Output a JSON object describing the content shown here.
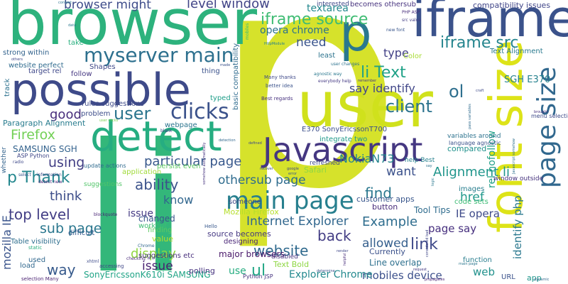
{
  "words": [
    {
      "text": "p",
      "color": "#d6e22b"
    },
    {
      "text": "li",
      "color": "#33b77a"
    },
    {
      "text": "browser",
      "color": "#2db27d"
    },
    {
      "text": "iframe",
      "color": "#3b528b"
    },
    {
      "text": "user",
      "color": "#d0e11c"
    },
    {
      "text": "possible",
      "color": "#3e4a89"
    },
    {
      "text": "detect",
      "color": "#26ad81"
    },
    {
      "text": "font size",
      "color": "#dde318"
    },
    {
      "text": "p",
      "color": "#2a788e"
    },
    {
      "text": "Javascript",
      "color": "#453781"
    },
    {
      "text": "page size",
      "color": "#31688e"
    },
    {
      "text": "main page",
      "color": "#277f8e"
    },
    {
      "text": "myserver main",
      "color": "#2d708e"
    },
    {
      "text": "clicks",
      "color": "#3b528b"
    },
    {
      "text": "iframe source",
      "color": "#3fbc73"
    },
    {
      "text": "iframe src",
      "color": "#25858e"
    },
    {
      "text": "li Text",
      "color": "#1fa187"
    },
    {
      "text": "client",
      "color": "#2c738e"
    },
    {
      "text": "user",
      "color": "#2b758e"
    },
    {
      "text": "browser might",
      "color": "#3e4c8a"
    },
    {
      "text": "level window",
      "color": "#414487"
    },
    {
      "text": "compatibility issues",
      "color": "#404588"
    },
    {
      "text": "opera chrome",
      "color": "#2c728e"
    },
    {
      "text": "textarea",
      "color": "#23888e"
    },
    {
      "text": "becomes othersub",
      "color": "#46327e"
    },
    {
      "text": "need",
      "color": "#3a548c"
    },
    {
      "text": "say identify",
      "color": "#404688"
    },
    {
      "text": "ol",
      "color": "#2e6f8e"
    },
    {
      "text": "type",
      "color": "#424086"
    },
    {
      "text": "good",
      "color": "#472d7b"
    },
    {
      "text": "particular page",
      "color": "#38588c"
    },
    {
      "text": "Firefox",
      "color": "#73d056"
    },
    {
      "text": "using",
      "color": "#423f85"
    },
    {
      "text": "p Thank",
      "color": "#24878e"
    },
    {
      "text": "ability",
      "color": "#3b528b"
    },
    {
      "text": "think",
      "color": "#3d4e8a"
    },
    {
      "text": "top level",
      "color": "#433e85"
    },
    {
      "text": "sub page",
      "color": "#2a778e"
    },
    {
      "text": "display",
      "color": "#90d743"
    },
    {
      "text": "way",
      "color": "#375a8c"
    },
    {
      "text": "othersub page",
      "color": "#2f6c8e"
    },
    {
      "text": "main page",
      "color": "#2a768e"
    },
    {
      "text": "website",
      "color": "#306a8e"
    },
    {
      "text": "issue",
      "color": "#481f70"
    },
    {
      "text": "know",
      "color": "#31668e"
    },
    {
      "text": "Internet Explorer",
      "color": "#31678e"
    },
    {
      "text": "back",
      "color": "#433d84"
    },
    {
      "text": "find",
      "color": "#2a778e"
    },
    {
      "text": "want",
      "color": "#3b518b"
    },
    {
      "text": "Alignment li",
      "color": "#1f958b"
    },
    {
      "text": "Example",
      "color": "#2e6d8e"
    },
    {
      "text": "link",
      "color": "#3e4989"
    },
    {
      "text": "allowed",
      "color": "#355f8d"
    },
    {
      "text": "page say",
      "color": "#462f7e"
    },
    {
      "text": "mobiles device",
      "color": "#3c508b"
    },
    {
      "text": "web",
      "color": "#21918c"
    },
    {
      "text": "NokiaN73",
      "color": "#25858e"
    },
    {
      "text": "href",
      "color": "#1f988b"
    },
    {
      "text": "rel nofollow",
      "color": "#1f9f88"
    },
    {
      "text": "identify php",
      "color": "#2a788e"
    },
    {
      "text": "SGH E370",
      "color": "#26828e"
    },
    {
      "text": "Text Alignment",
      "color": "#29798e"
    },
    {
      "text": "IE opera",
      "color": "#3e4a89"
    },
    {
      "text": "mozilla IE",
      "color": "#3a548c"
    },
    {
      "text": "SAMSUNG SGH",
      "color": "#33628d"
    },
    {
      "text": "SonyEricssonK610i SAMSUNG",
      "color": "#20a486"
    },
    {
      "text": "ul",
      "color": "#22a785"
    },
    {
      "text": "Explorer Chrome",
      "color": "#23898e"
    },
    {
      "text": "use",
      "color": "#27ad81"
    },
    {
      "text": "E370 SonyEricssonT700",
      "color": "#3c4f8a"
    },
    {
      "text": "rules suggestions",
      "color": "#3e4a89"
    },
    {
      "text": "Paragraph Alignment",
      "color": "#287c8e"
    },
    {
      "text": "user clicks",
      "color": "#7ad151"
    },
    {
      "text": "Mozilla Firefox",
      "color": "#b5de2b"
    },
    {
      "text": "Tool Tips",
      "color": "#2f6c8e"
    },
    {
      "text": "source becomes",
      "color": "#453882"
    },
    {
      "text": "major browsers",
      "color": "#481769"
    },
    {
      "text": "Text Bold",
      "color": "#8fd744"
    },
    {
      "text": "Line overlap",
      "color": "#2d708e"
    },
    {
      "text": "Currently",
      "color": "#3b518b"
    },
    {
      "text": "button",
      "color": "#472c7a"
    },
    {
      "text": "customer apps",
      "color": "#39568c"
    },
    {
      "text": "polling",
      "color": "#46337f"
    },
    {
      "text": "designing",
      "color": "#482576"
    },
    {
      "text": "issue",
      "color": "#443a83"
    },
    {
      "text": "changed",
      "color": "#39558c"
    },
    {
      "text": "workout",
      "color": "#3fbc73"
    },
    {
      "text": "Table visibility",
      "color": "#2e6e8e"
    },
    {
      "text": "difficult",
      "color": "#375b8d"
    },
    {
      "text": "suggestions etc",
      "color": "#472e7c"
    },
    {
      "text": "load",
      "color": "#31688e"
    },
    {
      "text": "used",
      "color": "#31688e"
    },
    {
      "text": "strong within",
      "color": "#33638d"
    },
    {
      "text": "website perfect",
      "color": "#2f6b8e"
    },
    {
      "text": "target rel",
      "color": "#3f4889"
    },
    {
      "text": "Shapes",
      "color": "#3f4788"
    },
    {
      "text": "follow",
      "color": "#453781"
    },
    {
      "text": "take",
      "color": "#29af7f"
    },
    {
      "text": "track",
      "color": "#2c718e"
    },
    {
      "text": "problem",
      "color": "#3d4d8a"
    },
    {
      "text": "thing",
      "color": "#3b528b"
    },
    {
      "text": "typed",
      "color": "#1f9e89"
    },
    {
      "text": "webpage",
      "color": "#2b748e"
    },
    {
      "text": "basic compatibility",
      "color": "#2f6b8e"
    },
    {
      "text": "mobiles",
      "color": "#3fbc73"
    },
    {
      "text": "Color",
      "color": "#a8db34"
    },
    {
      "text": "least",
      "color": "#2c738e"
    },
    {
      "text": "interested",
      "color": "#3f4788"
    },
    {
      "text": "say",
      "color": "#2c738e"
    },
    {
      "text": "persist even",
      "color": "#5ec962"
    },
    {
      "text": "application",
      "color": "#a0da39"
    },
    {
      "text": "someone",
      "color": "#3f4788"
    },
    {
      "text": "Safari",
      "color": "#8ed645"
    },
    {
      "text": "code sets",
      "color": "#3dbc74"
    },
    {
      "text": "images",
      "color": "#277e8e"
    },
    {
      "text": "compared",
      "color": "#21918c"
    },
    {
      "text": "integrate two",
      "color": "#1f9a8a"
    },
    {
      "text": "refreshed",
      "color": "#3e4989"
    },
    {
      "text": "considered bad",
      "color": "#3f4788"
    },
    {
      "text": "function",
      "color": "#287d8e"
    },
    {
      "text": "app",
      "color": "#1f968b"
    },
    {
      "text": "URL",
      "color": "#3b528b"
    },
    {
      "text": "window outside",
      "color": "#46327e"
    },
    {
      "text": "Javascript somehow",
      "color": "#2d708e"
    },
    {
      "text": "menu selection",
      "color": "#3e4a89"
    },
    {
      "text": "variables around",
      "color": "#2c728e"
    },
    {
      "text": "language agnostic",
      "color": "#3b528b"
    },
    {
      "text": "help Best",
      "color": "#26818e"
    },
    {
      "text": "suggestions",
      "color": "#52c569"
    },
    {
      "text": "update actions",
      "color": "#2f6b8e"
    },
    {
      "text": "ASP Python",
      "color": "#3f4788"
    },
    {
      "text": "finding",
      "color": "#5ec962"
    },
    {
      "text": "value",
      "color": "#b5de2b"
    },
    {
      "text": "Hello",
      "color": "#38588c"
    },
    {
      "text": "disabled",
      "color": "#46337f"
    },
    {
      "text": "Python JSP",
      "color": "#46337f"
    },
    {
      "text": "accessing",
      "color": "#3f4788"
    },
    {
      "text": "selection Many",
      "color": "#481f70"
    },
    {
      "text": "Chrome",
      "color": "#31688e"
    },
    {
      "text": "checking",
      "color": "#482878"
    },
    {
      "text": "static",
      "color": "#29af7f"
    },
    {
      "text": "xhtml",
      "color": "#3e4c8a"
    },
    {
      "text": "blockquote",
      "color": "#482475"
    },
    {
      "text": "information",
      "color": "#3e4a89"
    },
    {
      "text": "select",
      "color": "#38598c"
    },
    {
      "text": "detect new",
      "color": "#482677"
    },
    {
      "text": "whether",
      "color": "#33638d"
    },
    {
      "text": "radio",
      "color": "#3e4989"
    },
    {
      "text": "blank",
      "color": "#3f4788"
    },
    {
      "text": "Many thanks",
      "color": "#3e4989"
    },
    {
      "text": "better idea",
      "color": "#3b528b"
    },
    {
      "text": "Best regards",
      "color": "#46307e"
    },
    {
      "text": "user changes",
      "color": "#2c728e"
    },
    {
      "text": "agnostic way",
      "color": "#2a788e"
    },
    {
      "text": "everybody help",
      "color": "#443983"
    },
    {
      "text": "remember",
      "color": "#453882"
    },
    {
      "text": "recover",
      "color": "#3b528b"
    },
    {
      "text": "google",
      "color": "#3f4788"
    },
    {
      "text": "error",
      "color": "#38588c"
    },
    {
      "text": "defined",
      "color": "#3e4989"
    },
    {
      "text": "detection",
      "color": "#31688e"
    },
    {
      "text": "somehow automatically",
      "color": "#46337f"
    },
    {
      "text": "PHP ASP",
      "color": "#472d7b"
    },
    {
      "text": "src value",
      "color": "#433e85"
    },
    {
      "text": "new font",
      "color": "#39568c"
    },
    {
      "text": "content",
      "color": "#2c718e"
    },
    {
      "text": "data",
      "color": "#2a788e"
    },
    {
      "text": "others",
      "color": "#3f4788"
    },
    {
      "text": "HttpModule",
      "color": "#26818e"
    },
    {
      "text": "made",
      "color": "#3b528b"
    },
    {
      "text": "pass variables",
      "color": "#2f6b8e"
    },
    {
      "text": "brought",
      "color": "#46327e"
    },
    {
      "text": "render",
      "color": "#3f4788"
    },
    {
      "text": "request",
      "color": "#443983"
    },
    {
      "text": "determine",
      "color": "#3b528b"
    },
    {
      "text": "helpful",
      "color": "#472d7b"
    },
    {
      "text": "dynamic",
      "color": "#31688e"
    },
    {
      "text": "craft",
      "color": "#3e4989"
    },
    {
      "text": "logic",
      "color": "#2a788e"
    },
    {
      "text": "propagates",
      "color": "#482475"
    }
  ]
}
